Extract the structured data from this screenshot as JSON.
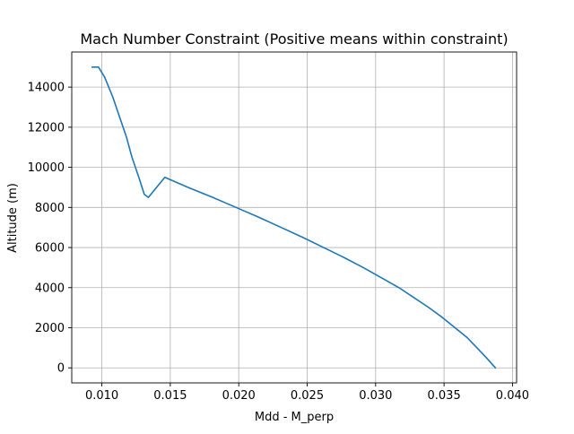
{
  "chart_data": {
    "type": "line",
    "title": "Mach Number Constraint (Positive means within constraint)",
    "xlabel": "Mdd - M_perp",
    "ylabel": "Altitude (m)",
    "xlim": [
      0.0078,
      0.0403
    ],
    "ylim": [
      -750,
      15750
    ],
    "grid": true,
    "xticks": [
      0.01,
      0.015,
      0.02,
      0.025,
      0.03,
      0.035,
      0.04
    ],
    "xtick_labels": [
      "0.010",
      "0.015",
      "0.020",
      "0.025",
      "0.030",
      "0.035",
      "0.040"
    ],
    "yticks": [
      0,
      2000,
      4000,
      6000,
      8000,
      10000,
      12000,
      14000
    ],
    "ytick_labels": [
      "0",
      "2000",
      "4000",
      "6000",
      "8000",
      "10000",
      "12000",
      "14000"
    ],
    "colors": {
      "line": "#1f77b4",
      "grid": "#b0b0b0",
      "axes": "#000000"
    },
    "series": [
      {
        "name": "Mdd - M_perp",
        "x": [
          0.03875,
          0.0381,
          0.0374,
          0.0367,
          0.0358,
          0.0349,
          0.0339,
          0.0328,
          0.0317,
          0.0304,
          0.0291,
          0.0277,
          0.0262,
          0.0247,
          0.0231,
          0.0215,
          0.0198,
          0.0181,
          0.0163,
          0.0146,
          0.0134,
          0.0131,
          0.0127,
          0.0122,
          0.0118,
          0.0113,
          0.0108,
          0.0102,
          0.00975,
          0.0093
        ],
        "y": [
          0,
          500,
          1000,
          1500,
          2000,
          2500,
          3000,
          3500,
          4000,
          4500,
          5000,
          5500,
          6000,
          6500,
          7000,
          7500,
          8000,
          8500,
          9000,
          9500,
          8500,
          8650,
          9500,
          10500,
          11500,
          12500,
          13500,
          14500,
          15000,
          15000
        ]
      }
    ]
  }
}
